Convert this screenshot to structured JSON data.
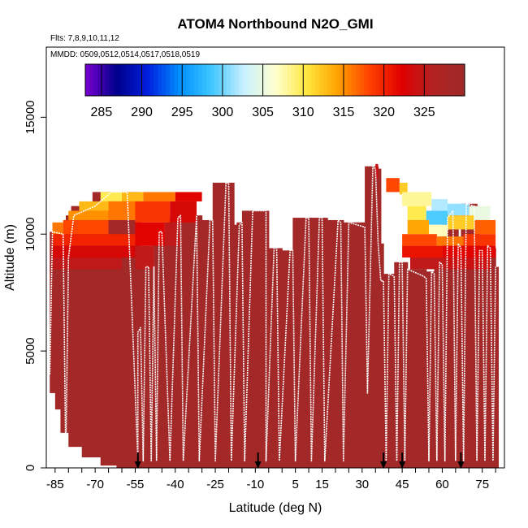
{
  "chart_data": {
    "type": "heatmap",
    "title": "ATOM4 Northbound N2O_GMI",
    "subtitle_lines": [
      "Flts: 7,8,9,10,11,12",
      "MMDD: 0509,0512,0514,0517,0518,0519"
    ],
    "xlabel": "Latitude (deg N)",
    "ylabel": "Altitude (m)",
    "xlim": [
      -88,
      83
    ],
    "ylim": [
      0,
      18000
    ],
    "x_tick_labels": [
      -85,
      -70,
      -55,
      -40,
      -25,
      -10,
      5,
      15,
      30,
      45,
      60,
      75
    ],
    "x_minor_ticks": [
      -85,
      -80,
      -75,
      -70,
      -65,
      -60,
      -55,
      -50,
      -45,
      -40,
      -35,
      -30,
      -25,
      -20,
      -15,
      -10,
      -5,
      0,
      5,
      10,
      15,
      20,
      25,
      30,
      35,
      40,
      45,
      50,
      55,
      60,
      65,
      70,
      75,
      80
    ],
    "y_tick_labels": [
      0,
      5000,
      10000,
      15000
    ],
    "colorbar": {
      "ticks": [
        285,
        290,
        295,
        300,
        305,
        310,
        315,
        320,
        325
      ],
      "range": [
        283,
        330
      ],
      "colors": [
        "#7a00d0",
        "#00008b",
        "#0020e0",
        "#0090ff",
        "#40c8ff",
        "#c8f0ff",
        "#ffffd0",
        "#ffe840",
        "#ffa000",
        "#ff4000",
        "#e00000",
        "#b22222",
        "#9e2a2a"
      ]
    },
    "background_value": 329,
    "flight_markers_lat": [
      -54,
      -9,
      38,
      45,
      67
    ],
    "colored_cells": [
      {
        "lat0": -86,
        "lat1": -82,
        "alt0": 10000,
        "alt1": 10500,
        "value": 316
      },
      {
        "lat0": -82,
        "lat1": -65,
        "alt0": 10000,
        "alt1": 10600,
        "value": 318
      },
      {
        "lat0": -86,
        "lat1": -55,
        "alt0": 9500,
        "alt1": 10000,
        "value": 320
      },
      {
        "lat0": -86,
        "lat1": -55,
        "alt0": 9000,
        "alt1": 9500,
        "value": 323
      },
      {
        "lat0": -86,
        "lat1": -60,
        "alt0": 8500,
        "alt1": 9000,
        "value": 325
      },
      {
        "lat0": -80,
        "lat1": -65,
        "alt0": 10600,
        "alt1": 11000,
        "value": 315
      },
      {
        "lat0": -76,
        "lat1": -60,
        "alt0": 11000,
        "alt1": 11400,
        "value": 313
      },
      {
        "lat0": -68,
        "lat1": -60,
        "alt0": 11400,
        "alt1": 11800,
        "value": 310
      },
      {
        "lat0": -60,
        "lat1": -52,
        "alt0": 11400,
        "alt1": 11800,
        "value": 313
      },
      {
        "lat0": -52,
        "lat1": -40,
        "alt0": 11400,
        "alt1": 11800,
        "value": 316
      },
      {
        "lat0": -40,
        "lat1": -30,
        "alt0": 11400,
        "alt1": 11800,
        "value": 322
      },
      {
        "lat0": -65,
        "lat1": -55,
        "alt0": 10600,
        "alt1": 11400,
        "value": 316
      },
      {
        "lat0": -55,
        "lat1": -42,
        "alt0": 10500,
        "alt1": 11400,
        "value": 319
      },
      {
        "lat0": -42,
        "lat1": -32,
        "alt0": 10500,
        "alt1": 11400,
        "value": 323
      },
      {
        "lat0": -55,
        "lat1": -44,
        "alt0": 9500,
        "alt1": 10500,
        "value": 322
      },
      {
        "lat0": -55,
        "lat1": -48,
        "alt0": 8500,
        "alt1": 9500,
        "value": 325
      },
      {
        "lat0": -44,
        "lat1": -38,
        "alt0": 9500,
        "alt1": 10500,
        "value": 325
      },
      {
        "lat0": 39,
        "lat1": 44,
        "alt0": 11800,
        "alt1": 12400,
        "value": 318
      },
      {
        "lat0": 44,
        "lat1": 47,
        "alt0": 11700,
        "alt1": 12200,
        "value": 312
      },
      {
        "lat0": 45,
        "lat1": 56,
        "alt0": 11200,
        "alt1": 11800,
        "value": 308
      },
      {
        "lat0": 56,
        "lat1": 62,
        "alt0": 11000,
        "alt1": 11500,
        "value": 302
      },
      {
        "lat0": 47,
        "lat1": 54,
        "alt0": 10600,
        "alt1": 11200,
        "value": 310
      },
      {
        "lat0": 54,
        "lat1": 62,
        "alt0": 10400,
        "alt1": 11000,
        "value": 299
      },
      {
        "lat0": 62,
        "lat1": 70,
        "alt0": 10800,
        "alt1": 11300,
        "value": 301
      },
      {
        "lat0": 70,
        "lat1": 78,
        "alt0": 10600,
        "alt1": 11200,
        "value": 305
      },
      {
        "lat0": 47,
        "lat1": 55,
        "alt0": 10000,
        "alt1": 10600,
        "value": 314
      },
      {
        "lat0": 55,
        "lat1": 62,
        "alt0": 9900,
        "alt1": 10400,
        "value": 307
      },
      {
        "lat0": 62,
        "lat1": 72,
        "alt0": 10200,
        "alt1": 10800,
        "value": 312
      },
      {
        "lat0": 72,
        "lat1": 80,
        "alt0": 10000,
        "alt1": 10600,
        "value": 317
      },
      {
        "lat0": 45,
        "lat1": 58,
        "alt0": 9500,
        "alt1": 10000,
        "value": 318
      },
      {
        "lat0": 58,
        "lat1": 68,
        "alt0": 9500,
        "alt1": 9900,
        "value": 316
      },
      {
        "lat0": 68,
        "lat1": 80,
        "alt0": 9500,
        "alt1": 10000,
        "value": 319
      },
      {
        "lat0": 45,
        "lat1": 60,
        "alt0": 9000,
        "alt1": 9500,
        "value": 321
      },
      {
        "lat0": 60,
        "lat1": 80,
        "alt0": 9000,
        "alt1": 9500,
        "value": 322
      },
      {
        "lat0": 48,
        "lat1": 62,
        "alt0": 8500,
        "alt1": 9000,
        "value": 325
      },
      {
        "lat0": 62,
        "lat1": 78,
        "alt0": 8500,
        "alt1": 9000,
        "value": 324
      },
      {
        "lat0": 35,
        "lat1": 36,
        "alt0": 12400,
        "alt1": 13000,
        "value": 324
      }
    ],
    "flight_track": [
      [
        -87,
        4000
      ],
      [
        -86,
        10100
      ],
      [
        -82,
        10000
      ],
      [
        -81,
        300
      ],
      [
        -80,
        9000
      ],
      [
        -78,
        10800
      ],
      [
        -70,
        11200
      ],
      [
        -64,
        11800
      ],
      [
        -58,
        11800
      ],
      [
        -54,
        400
      ],
      [
        -54,
        5800
      ],
      [
        -53,
        6000
      ],
      [
        -52,
        300
      ],
      [
        -51,
        8600
      ],
      [
        -50,
        8600
      ],
      [
        -49,
        300
      ],
      [
        -48,
        8600
      ],
      [
        -47,
        300
      ],
      [
        -46,
        10100
      ],
      [
        -45,
        10100
      ],
      [
        -42,
        300
      ],
      [
        -39,
        10700
      ],
      [
        -38,
        10800
      ],
      [
        -37,
        300
      ],
      [
        -32,
        10800
      ],
      [
        -31,
        300
      ],
      [
        -27,
        10600
      ],
      [
        -26,
        10600
      ],
      [
        -25,
        300
      ],
      [
        -21,
        12200
      ],
      [
        -20,
        12200
      ],
      [
        -19,
        300
      ],
      [
        -16,
        10400
      ],
      [
        -15,
        10500
      ],
      [
        -14,
        300
      ],
      [
        -11,
        11000
      ],
      [
        -6,
        11000
      ],
      [
        -6,
        300
      ],
      [
        -3,
        9400
      ],
      [
        -2,
        9400
      ],
      [
        -1,
        300
      ],
      [
        3,
        9300
      ],
      [
        4,
        9300
      ],
      [
        5,
        300
      ],
      [
        9,
        10700
      ],
      [
        10,
        10700
      ],
      [
        11,
        300
      ],
      [
        14,
        10700
      ],
      [
        15,
        10700
      ],
      [
        16,
        300
      ],
      [
        21,
        10600
      ],
      [
        22,
        10500
      ],
      [
        23,
        300
      ],
      [
        25,
        10500
      ],
      [
        31,
        10300
      ],
      [
        32,
        3200
      ],
      [
        34,
        12900
      ],
      [
        35,
        12800
      ],
      [
        36,
        9600
      ],
      [
        37,
        8000
      ],
      [
        38,
        8000
      ],
      [
        39,
        300
      ],
      [
        40,
        8300
      ],
      [
        42,
        8200
      ],
      [
        43,
        300
      ],
      [
        44,
        8800
      ],
      [
        45,
        8800
      ],
      [
        46,
        300
      ],
      [
        47,
        8500
      ],
      [
        53,
        8200
      ],
      [
        54,
        8100
      ],
      [
        55,
        300
      ],
      [
        56,
        8400
      ],
      [
        57,
        8300
      ],
      [
        58,
        300
      ],
      [
        59,
        8800
      ],
      [
        60,
        8700
      ],
      [
        61,
        300
      ],
      [
        62,
        10700
      ],
      [
        64,
        11000
      ],
      [
        65,
        300
      ],
      [
        66,
        9600
      ],
      [
        67,
        9400
      ],
      [
        68,
        300
      ],
      [
        69,
        11300
      ],
      [
        72,
        11200
      ],
      [
        73,
        300
      ],
      [
        74,
        9300
      ],
      [
        75,
        9300
      ],
      [
        76,
        300
      ],
      [
        77,
        9500
      ],
      [
        78,
        9400
      ],
      [
        79,
        300
      ],
      [
        80,
        8600
      ]
    ]
  }
}
